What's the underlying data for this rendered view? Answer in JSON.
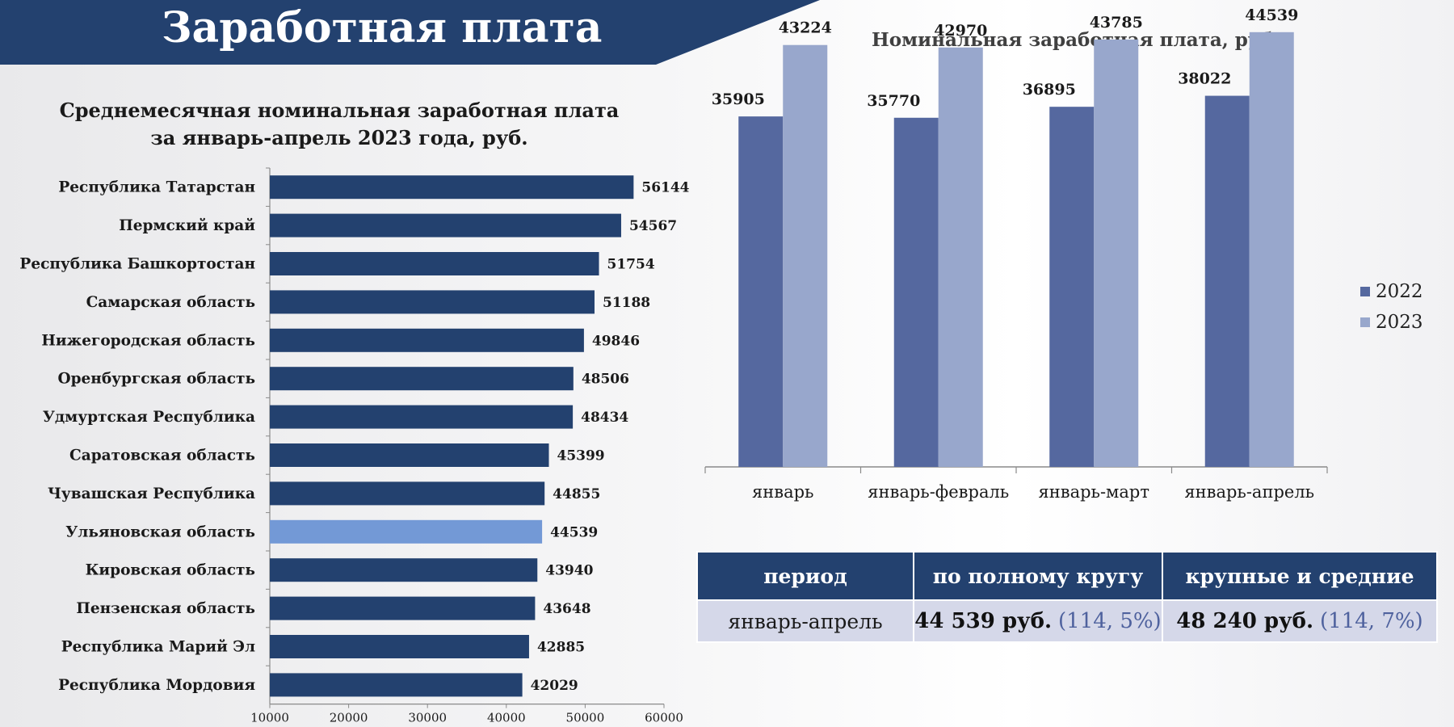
{
  "header": {
    "title": "Заработная плата"
  },
  "summary_table": {
    "headers": [
      "период",
      "по полному кругу",
      "крупные и средние"
    ],
    "row": {
      "period": "январь-апрель",
      "full_value": "44 539 руб.",
      "full_pct": "(114, 5%)",
      "large_value": "48 240 руб.",
      "large_pct": "(114, 7%)"
    }
  },
  "colors": {
    "header_bg": "#23416f",
    "bar_main": "#23416f",
    "bar_highlight": "#7399d6",
    "series_2022": "#55689f",
    "series_2023": "#98a7cc",
    "table_row_bg": "#d5d8e9",
    "pct_text": "#4f629e"
  },
  "chart_data": [
    {
      "type": "bar",
      "orientation": "horizontal",
      "title": "Среднемесячная номинальная заработная плата за январь-апрель 2023 года, руб.",
      "title_lines": [
        "Среднемесячная номинальная заработная плата",
        "за январь-апрель 2023 года, руб."
      ],
      "categories": [
        "Республика Татарстан",
        "Пермский край",
        "Республика Башкортостан",
        "Самарская область",
        "Нижегородская область",
        "Оренбургская область",
        "Удмуртская Республика",
        "Саратовская область",
        "Чувашская Республика",
        "Ульяновская область",
        "Кировская область",
        "Пензенская область",
        "Республика Марий Эл",
        "Республика Мордовия"
      ],
      "values": [
        56144,
        54567,
        51754,
        51188,
        49846,
        48506,
        48434,
        45399,
        44855,
        44539,
        43940,
        43648,
        42885,
        42029
      ],
      "highlight_category": "Ульяновская область",
      "xlim": [
        10000,
        60000
      ],
      "xticks": [
        10000,
        20000,
        30000,
        40000,
        50000,
        60000
      ],
      "data_labels": true,
      "grid": false
    },
    {
      "type": "bar",
      "orientation": "vertical",
      "title": "Номинальная заработная плата, руб.",
      "categories": [
        "январь",
        "январь-февраль",
        "январь-март",
        "январь-апрель"
      ],
      "series": [
        {
          "name": "2022",
          "values": [
            35905,
            35770,
            36895,
            38022
          ]
        },
        {
          "name": "2023",
          "values": [
            43224,
            42970,
            43785,
            44539
          ]
        }
      ],
      "ylim": [
        0,
        48000
      ],
      "legend": "right",
      "data_labels": true,
      "grid": false
    }
  ]
}
